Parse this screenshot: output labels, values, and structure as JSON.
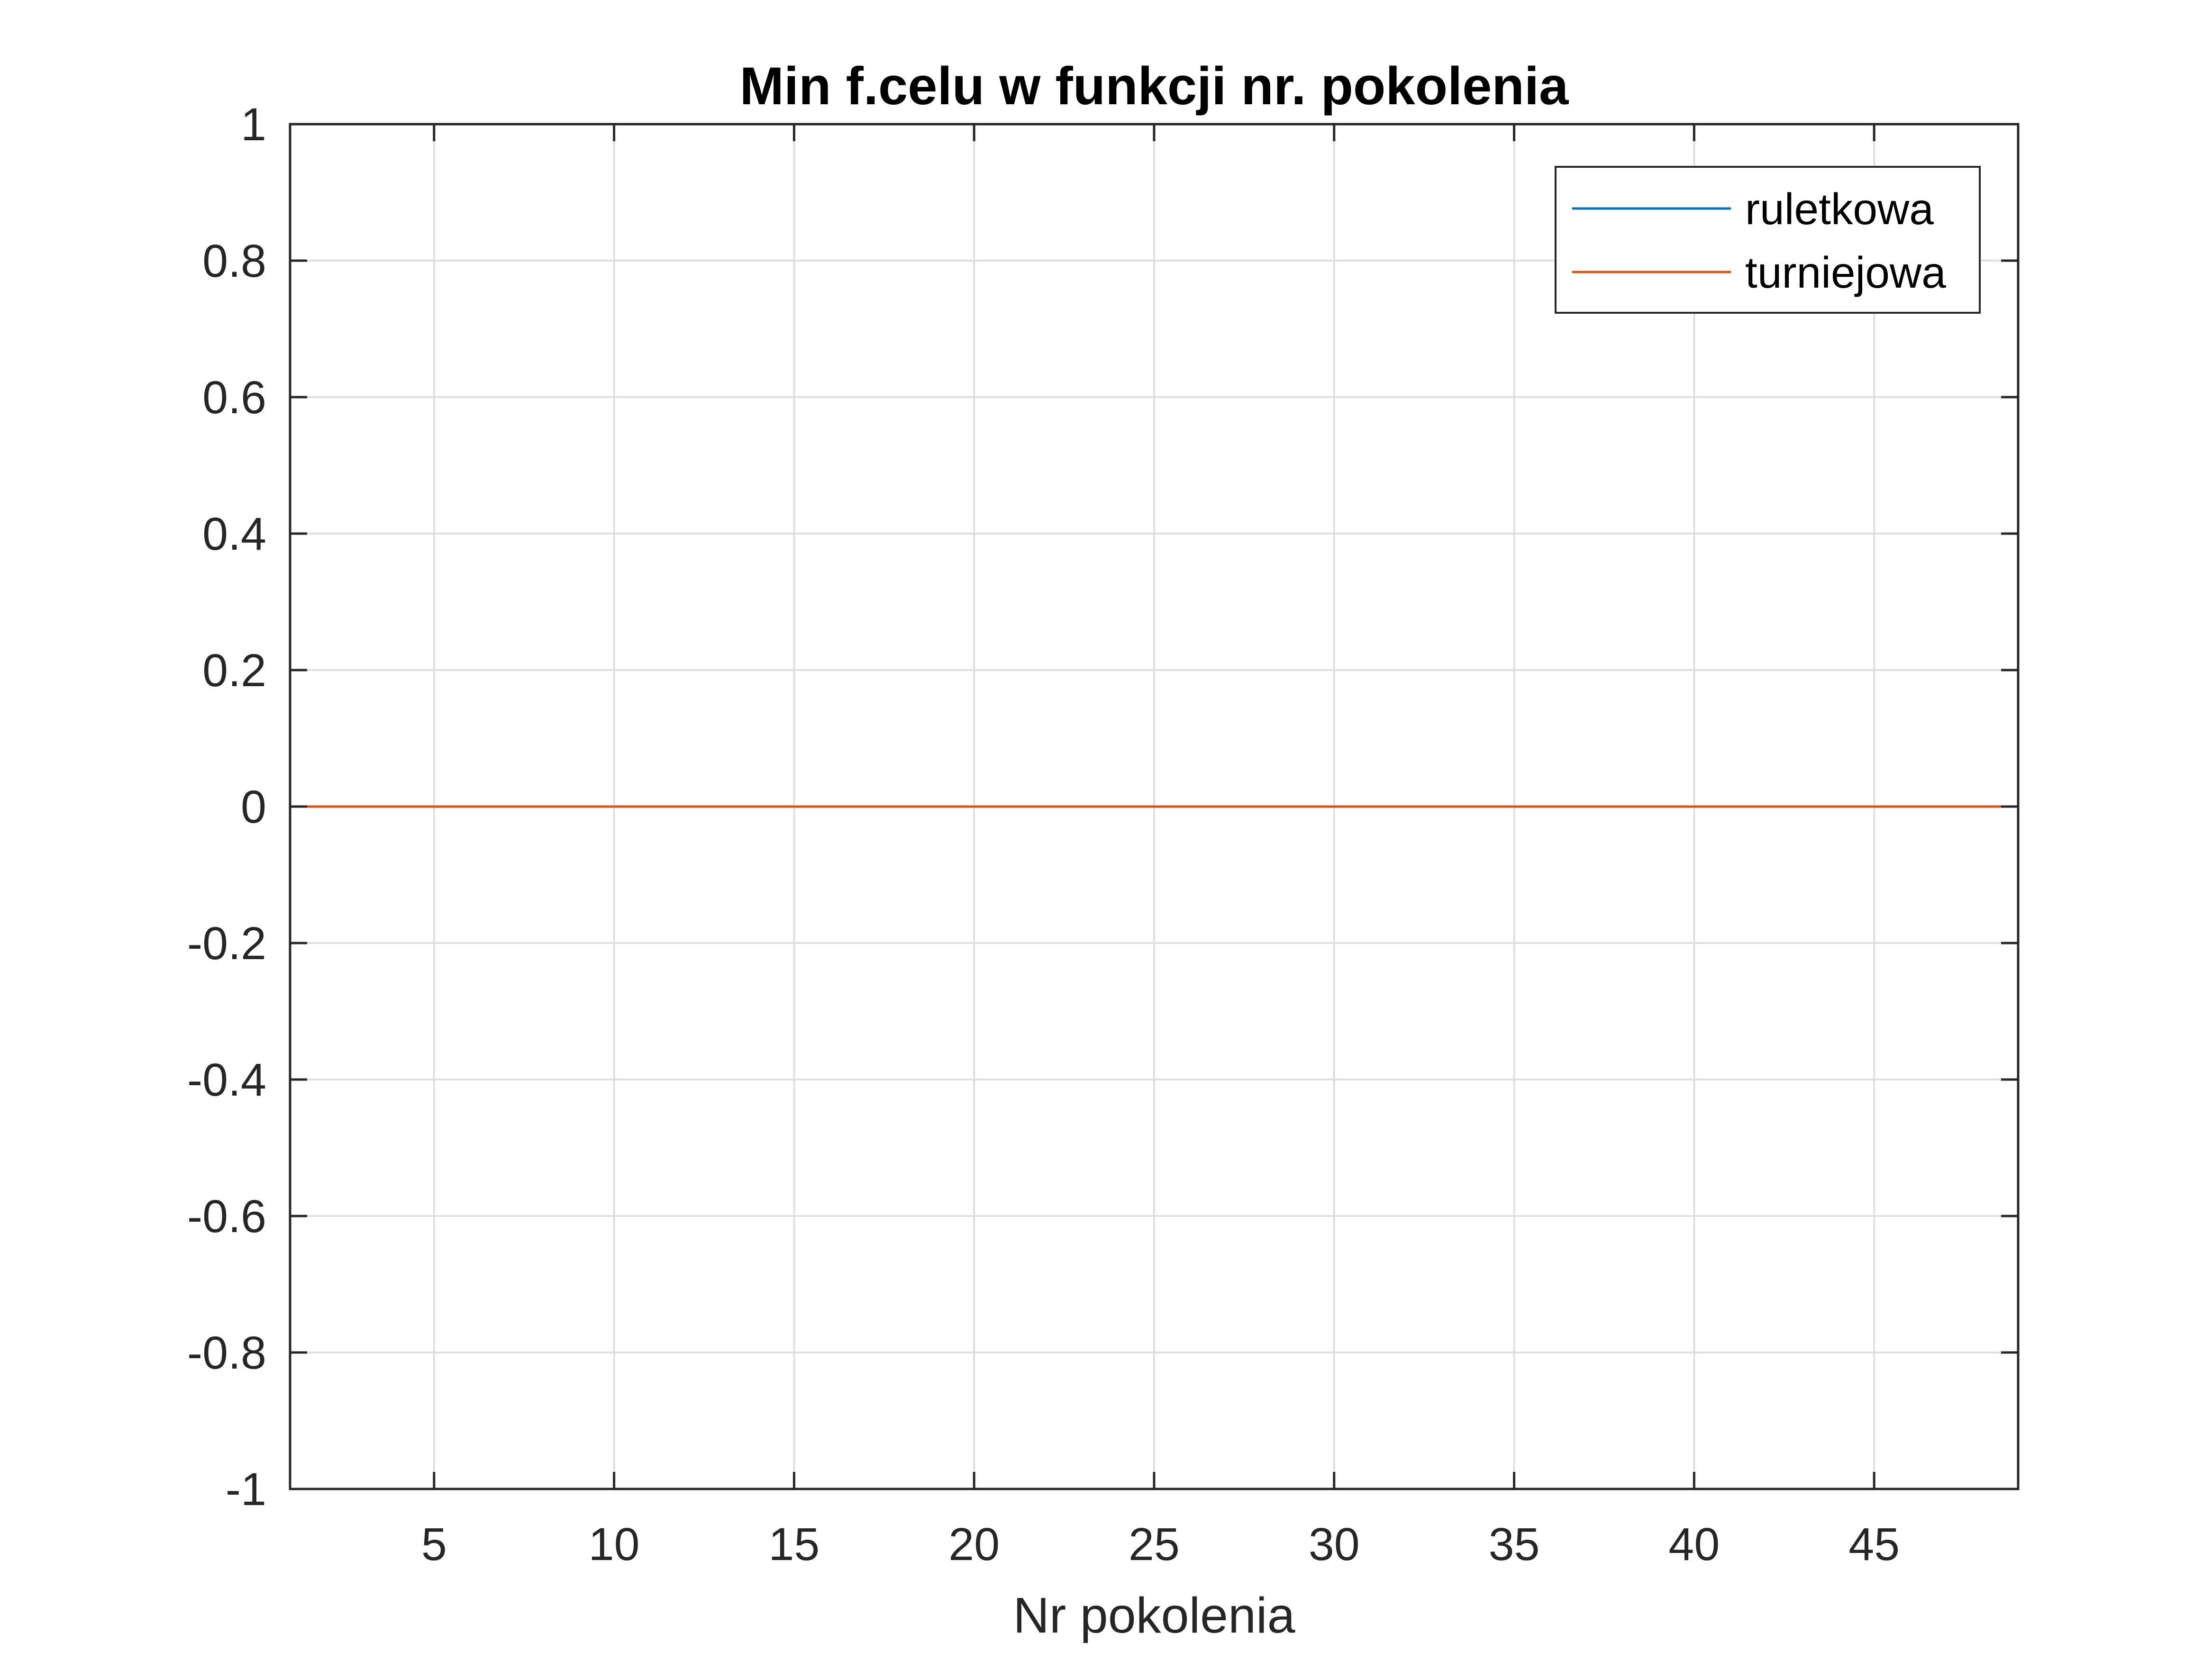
{
  "chart_data": {
    "type": "line",
    "title": "Min f.celu w funkcji nr. pokolenia",
    "xlabel": "Nr pokolenia",
    "ylabel": "",
    "xlim": [
      1,
      49
    ],
    "ylim": [
      -1,
      1
    ],
    "xticks": [
      5,
      10,
      15,
      20,
      25,
      30,
      35,
      40,
      45
    ],
    "yticks": [
      -1,
      -0.8,
      -0.6,
      -0.4,
      -0.2,
      0,
      0.2,
      0.4,
      0.6,
      0.8,
      1
    ],
    "grid": true,
    "legend_position": "top-right",
    "series": [
      {
        "name": "ruletkowa",
        "color": "#0072BD",
        "x": [
          1,
          49
        ],
        "y": [
          0,
          0
        ]
      },
      {
        "name": "turniejowa",
        "color": "#D95319",
        "x": [
          1,
          49
        ],
        "y": [
          0,
          0
        ]
      }
    ]
  }
}
